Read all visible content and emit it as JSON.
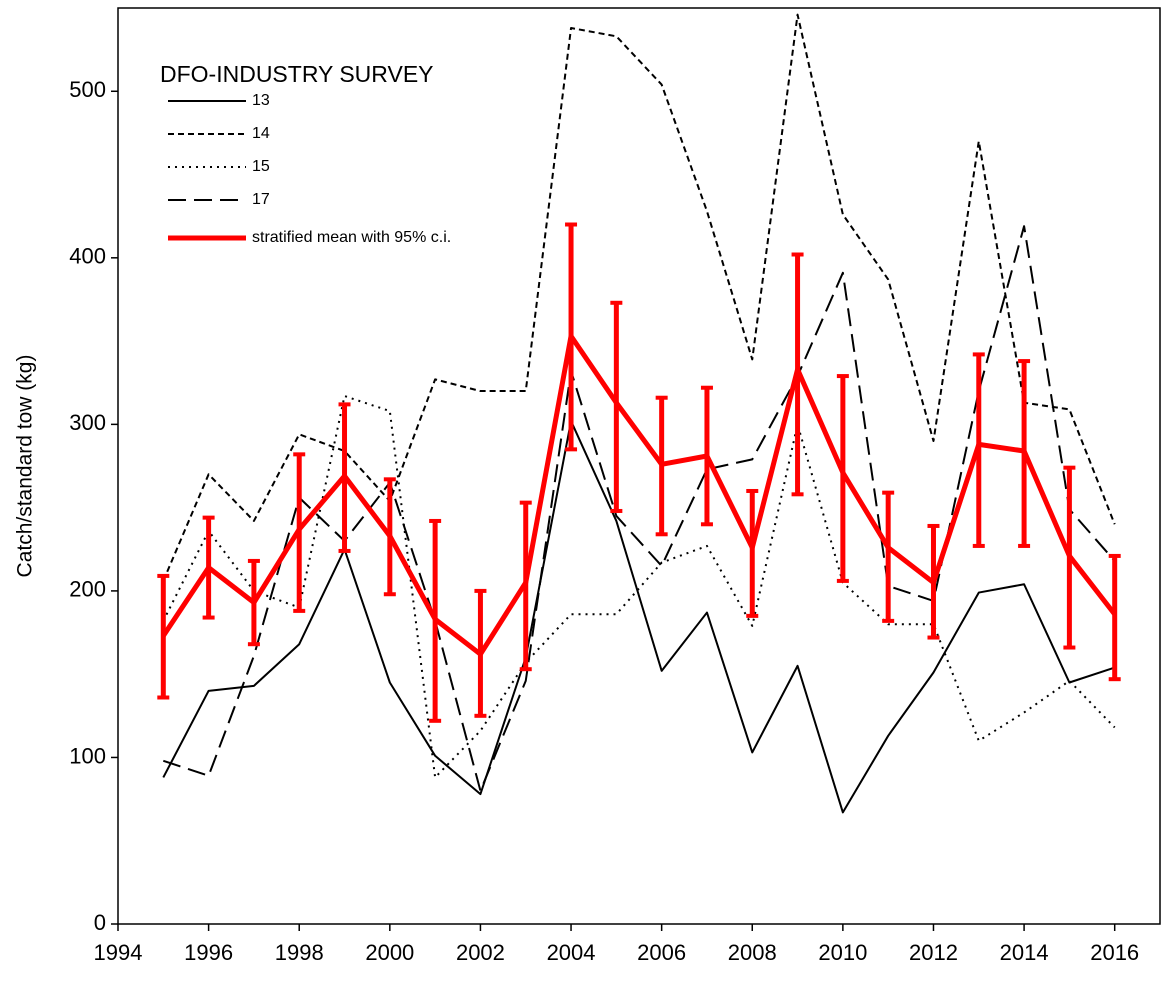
{
  "chart_data": {
    "type": "line",
    "y_label": "Catch/standard tow (kg)",
    "legend_title": "DFO-INDUSTRY SURVEY",
    "x": [
      1995,
      1996,
      1997,
      1998,
      1999,
      2000,
      2001,
      2002,
      2003,
      2004,
      2005,
      2006,
      2007,
      2008,
      2009,
      2010,
      2011,
      2012,
      2013,
      2014,
      2015,
      2016
    ],
    "xlim": [
      1994,
      2017
    ],
    "xticks": [
      1994,
      1996,
      1998,
      2000,
      2002,
      2004,
      2006,
      2008,
      2010,
      2012,
      2014,
      2016
    ],
    "ylim": [
      0,
      550
    ],
    "yticks": [
      0,
      100,
      200,
      300,
      400,
      500
    ],
    "series": [
      {
        "name": "13",
        "color": "#000000",
        "dash": "solid",
        "values": [
          88,
          140,
          143,
          168,
          225,
          145,
          101,
          78,
          160,
          302,
          242,
          152,
          187,
          103,
          155,
          67,
          113,
          151,
          199,
          204,
          145,
          154
        ]
      },
      {
        "name": "14",
        "color": "#000000",
        "dash": "short",
        "values": [
          206,
          270,
          242,
          294,
          284,
          254,
          327,
          320,
          320,
          538,
          533,
          504,
          428,
          339,
          546,
          426,
          387,
          290,
          470,
          313,
          309,
          240
        ]
      },
      {
        "name": "15",
        "color": "#000000",
        "dash": "dotted",
        "values": [
          182,
          236,
          200,
          190,
          317,
          308,
          88,
          116,
          157,
          186,
          186,
          217,
          227,
          179,
          300,
          205,
          180,
          180,
          110,
          127,
          146,
          118
        ]
      },
      {
        "name": "17",
        "color": "#000000",
        "dash": "long",
        "values": [
          98,
          89,
          161,
          256,
          230,
          265,
          182,
          80,
          146,
          332,
          245,
          215,
          273,
          279,
          329,
          391,
          203,
          194,
          320,
          419,
          249,
          218
        ]
      },
      {
        "name": "stratified mean with 95% c.i.",
        "color": "#ff0000",
        "dash": "solid",
        "values": [
          173,
          214,
          193,
          237,
          269,
          233,
          183,
          162,
          205,
          353,
          313,
          276,
          281,
          226,
          333,
          271,
          226,
          205,
          288,
          284,
          221,
          186
        ],
        "ci_low": [
          136,
          184,
          168,
          188,
          224,
          198,
          122,
          125,
          153,
          285,
          248,
          234,
          240,
          185,
          258,
          206,
          182,
          172,
          227,
          227,
          166,
          147
        ],
        "ci_high": [
          209,
          244,
          218,
          282,
          312,
          267,
          242,
          200,
          253,
          420,
          373,
          316,
          322,
          260,
          402,
          329,
          259,
          239,
          342,
          338,
          274,
          221
        ]
      }
    ]
  }
}
